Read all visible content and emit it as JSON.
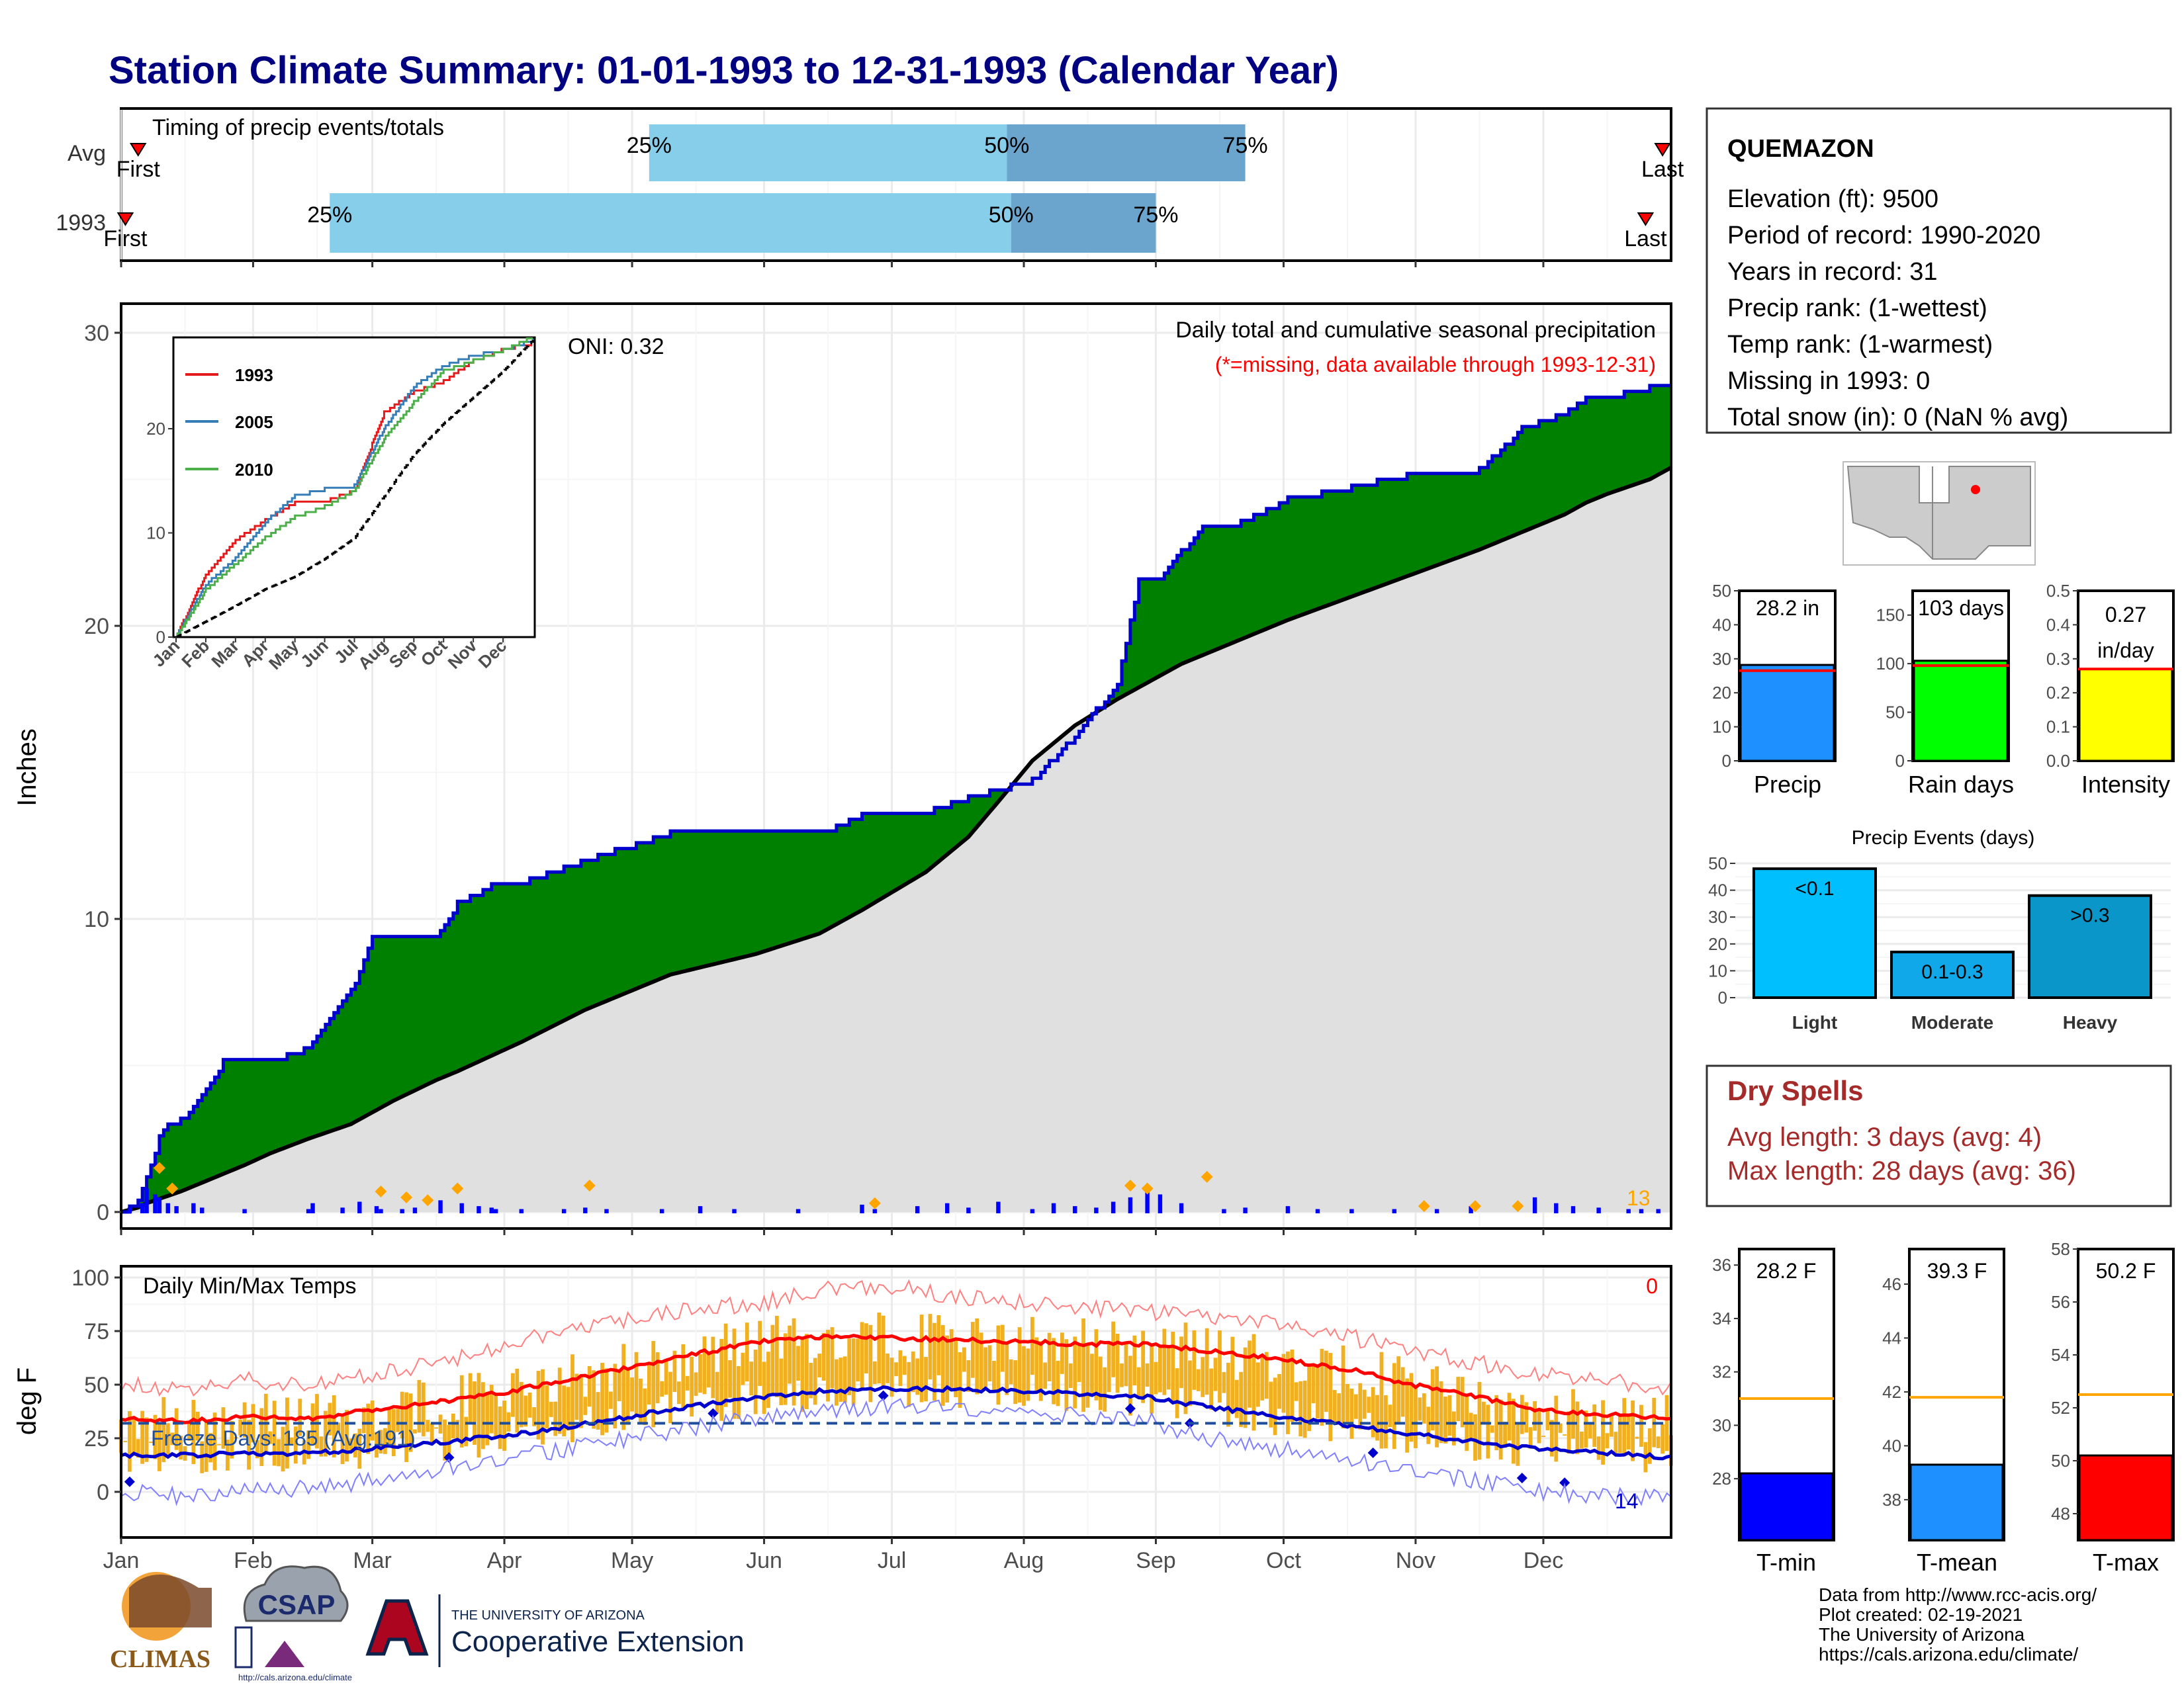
{
  "title": "Station Climate Summary: 01-01-1993 to 12-31-1993 (Calendar Year)",
  "colors": {
    "title": "#000080",
    "cum_obs": "#008000",
    "cum_obs_line": "#0000cd",
    "cum_avg": "#e0e0e0",
    "daily_bar": "#0000ff",
    "marker": "#ffa500",
    "quart_light": "#87ceeb",
    "quart_dark": "#6ba5cd",
    "tmax": "#ff0000",
    "tmin": "#0000cd",
    "range_bar": "#f0b020",
    "dry": "#a52a2a"
  },
  "timing": {
    "title": "Timing of precip events/totals",
    "rows": [
      {
        "label": "Avg",
        "first_label": "First",
        "last_label": "Last",
        "first_day": 5,
        "last_day": 363,
        "q25_day": 125,
        "q50_day": 209,
        "q75_day": 265
      },
      {
        "label": "1993",
        "first_label": "First",
        "last_label": "Last",
        "first_day": 2,
        "last_day": 359,
        "q25_day": 50,
        "q50_day": 210,
        "q75_day": 244
      }
    ],
    "q_labels": [
      "25%",
      "50%",
      "75%"
    ]
  },
  "station": {
    "name": "QUEMAZON",
    "lines": [
      "Elevation (ft): 9500",
      "Period of record: 1990-2020",
      "Years in record: 31",
      "Precip rank:  (1-wettest)",
      "Temp rank:  (1-warmest)",
      "Missing in 1993: 0",
      "Total snow (in): 0 (NaN % avg)"
    ]
  },
  "precip_panel": {
    "ylabel": "Inches",
    "subtitle": "Daily total and cumulative seasonal precipitation",
    "missing_note": "(*=missing, data available through 1993-12-31)",
    "oni": "ONI: 0.32",
    "missing_count": "13",
    "yticks": [
      "0",
      "10",
      "20",
      "30"
    ]
  },
  "months": [
    "Jan",
    "Feb",
    "Mar",
    "Apr",
    "May",
    "Jun",
    "Jul",
    "Aug",
    "Sep",
    "Oct",
    "Nov",
    "Dec"
  ],
  "inset": {
    "legend": [
      "1993",
      "2005",
      "2010"
    ],
    "colors": [
      "#e41a1c",
      "#377eb8",
      "#4daf4a"
    ],
    "yticks": [
      "0",
      "10",
      "20"
    ]
  },
  "temp_panel": {
    "ylabel": "deg F",
    "title": "Daily Min/Max Temps",
    "missing_count": "0",
    "freeze": "Freeze Days: 185 (Avg:191)",
    "bottom_count": "14",
    "yticks": [
      "0",
      "25",
      "50",
      "75",
      "100"
    ]
  },
  "summary_bars": [
    {
      "label": "Precip",
      "value_text": "28.2 in",
      "value_line2": "",
      "color": "#1e90ff",
      "yticks": [
        "0",
        "10",
        "20",
        "30",
        "40",
        "50"
      ]
    },
    {
      "label": "Rain days",
      "value_text": "103 days",
      "value_line2": "",
      "color": "#00ff00",
      "yticks": [
        "0",
        "50",
        "100",
        "150"
      ]
    },
    {
      "label": "Intensity",
      "value_text": "0.27",
      "value_line2": "in/day",
      "color": "#ffff00",
      "yticks": [
        "0.0",
        "0.1",
        "0.2",
        "0.3",
        "0.4",
        "0.5"
      ]
    }
  ],
  "events": {
    "title": "Precip Events (days)",
    "yticks": [
      "0",
      "10",
      "20",
      "30",
      "40",
      "50"
    ],
    "bars": [
      {
        "label": "Light",
        "inner": "<0.1",
        "color": "#00bfff"
      },
      {
        "label": "Moderate",
        "inner": "0.1-0.3",
        "color": "#10a8e8"
      },
      {
        "label": "Heavy",
        "inner": ">0.3",
        "color": "#0a96c8"
      }
    ]
  },
  "dry": {
    "title": "Dry Spells",
    "avg": "Avg length: 3 days (avg: 4)",
    "max": "Max length: 28 days (avg: 36)"
  },
  "temp_bars": [
    {
      "label": "T-min",
      "value_text": "28.2 F",
      "color": "#0000ff",
      "yticks": [
        "28",
        "30",
        "32",
        "34",
        "36"
      ]
    },
    {
      "label": "T-mean",
      "value_text": "39.3 F",
      "color": "#1e90ff",
      "yticks": [
        "38",
        "40",
        "42",
        "44",
        "46"
      ]
    },
    {
      "label": "T-max",
      "value_text": "50.2 F",
      "color": "#ff0000",
      "yticks": [
        "48",
        "50",
        "52",
        "54",
        "56",
        "58"
      ]
    }
  ],
  "footer": [
    "Data from http://www.rcc-acis.org/",
    "Plot created: 02-19-2021",
    "The University of Arizona",
    "https://cals.arizona.edu/climate/"
  ],
  "logos": {
    "climas": "CLIMAS",
    "csap": "CSAP",
    "csap_url": "http://cals.arizona.edu/climate",
    "ua_top": "THE UNIVERSITY OF ARIZONA",
    "ua_main": "Cooperative Extension"
  },
  "chart_data": [
    {
      "type": "area",
      "title": "Daily total and cumulative seasonal precipitation",
      "ylabel": "Inches",
      "ylim": [
        0,
        30
      ],
      "x_days": [
        1,
        5,
        7,
        10,
        12,
        15,
        20,
        25,
        30,
        36,
        45,
        55,
        60,
        65,
        75,
        80,
        89,
        95,
        110,
        130,
        150,
        165,
        175,
        190,
        200,
        207,
        215,
        225,
        235,
        240,
        245,
        250,
        255,
        260,
        265,
        275,
        290,
        305,
        320,
        330,
        340,
        345,
        350,
        360,
        365
      ],
      "cumulative_1993": [
        0,
        0.3,
        1.2,
        2.5,
        3.0,
        3.1,
        4.0,
        5.1,
        5.1,
        5.1,
        5.6,
        7.5,
        9.3,
        9.4,
        9.4,
        10.5,
        11.2,
        11.2,
        12.0,
        12.9,
        12.9,
        12.9,
        13.5,
        13.6,
        14.1,
        14.4,
        14.7,
        16.2,
        18.0,
        21.5,
        21.5,
        22.5,
        23.3,
        23.3,
        23.6,
        24.3,
        24.7,
        25.2,
        25.3,
        26.7,
        27.2,
        27.7,
        27.8,
        28.1,
        28.2
      ],
      "cumulative_avg": [
        0,
        0.15,
        0.3,
        0.45,
        0.55,
        0.7,
        1.0,
        1.3,
        1.6,
        2.0,
        2.5,
        3.0,
        3.4,
        3.8,
        4.5,
        4.8,
        5.4,
        5.8,
        6.9,
        8.1,
        8.8,
        9.5,
        10.3,
        11.6,
        12.8,
        14.0,
        15.4,
        16.6,
        17.5,
        17.9,
        18.3,
        18.7,
        19.0,
        19.3,
        19.6,
        20.2,
        21.0,
        21.8,
        22.6,
        23.2,
        23.8,
        24.2,
        24.5,
        25.0,
        25.4
      ],
      "daily_precip_days": [
        3,
        6,
        7,
        9,
        10,
        12,
        14,
        18,
        20,
        30,
        45,
        46,
        53,
        57,
        61,
        62,
        67,
        70,
        76,
        81,
        85,
        88,
        89,
        95,
        105,
        110,
        115,
        128,
        137,
        145,
        160,
        175,
        178,
        188,
        195,
        200,
        207,
        215,
        220,
        225,
        230,
        234,
        238,
        242,
        245,
        250,
        260,
        265,
        275,
        282,
        290,
        300,
        310,
        318,
        333,
        338,
        342,
        348,
        355,
        358,
        362
      ],
      "daily_precip_values": [
        0.15,
        0.3,
        0.8,
        0.6,
        0.5,
        0.3,
        0.2,
        0.3,
        0.15,
        0.1,
        0.1,
        0.3,
        0.15,
        0.35,
        0.2,
        0.1,
        0.1,
        0.15,
        0.4,
        0.3,
        0.2,
        0.15,
        0.1,
        0.1,
        0.1,
        0.15,
        0.1,
        0.1,
        0.2,
        0.1,
        0.1,
        0.25,
        0.1,
        0.2,
        0.3,
        0.15,
        0.35,
        0.1,
        0.3,
        0.2,
        0.15,
        0.35,
        0.5,
        0.7,
        0.6,
        0.3,
        0.1,
        0.15,
        0.2,
        0.1,
        0.1,
        0.1,
        0.1,
        0.2,
        0.5,
        0.3,
        0.2,
        0.15,
        0.1,
        0.1,
        0.1
      ],
      "marker_days": [
        10,
        13,
        62,
        68,
        73,
        80,
        111,
        178,
        238,
        242,
        256,
        307,
        319,
        329
      ],
      "marker_values": [
        1.5,
        0.8,
        0.7,
        0.5,
        0.4,
        0.8,
        0.9,
        0.3,
        0.9,
        0.8,
        1.2,
        0.2,
        0.2,
        0.2
      ]
    },
    {
      "type": "line",
      "title": "",
      "legend": [
        "1993",
        "2005",
        "2010"
      ],
      "ylim": [
        0,
        30
      ],
      "x_months": [
        "Jan",
        "Feb",
        "Mar",
        "Apr",
        "May",
        "Jun",
        "Jul",
        "Aug",
        "Sep",
        "Oct",
        "Nov",
        "Dec",
        "end"
      ],
      "series": [
        {
          "name": "1993",
          "values": [
            0,
            6,
            9.3,
            11.2,
            12.9,
            13.0,
            14.0,
            21.5,
            23.5,
            24.5,
            26.5,
            27.6,
            28.2
          ]
        },
        {
          "name": "2005",
          "values": [
            0,
            5,
            7.5,
            11.0,
            13.5,
            14.2,
            14.5,
            20.0,
            24.0,
            26.0,
            27.0,
            27.5,
            28.5
          ]
        },
        {
          "name": "2010",
          "values": [
            0,
            4.5,
            7.0,
            9.5,
            11.5,
            12.5,
            14.0,
            19.0,
            22.5,
            25.5,
            26.5,
            27.5,
            28.8
          ]
        },
        {
          "name": "",
          "values": [
            0,
            1.5,
            3.0,
            4.6,
            5.8,
            7.5,
            9.5,
            13.5,
            17.5,
            20.5,
            23.0,
            25.5,
            28.5
          ]
        }
      ]
    },
    {
      "type": "line",
      "title": "Daily Min/Max Temps",
      "ylabel": "deg F",
      "ylim": [
        -15,
        105
      ],
      "x_days": [
        1,
        15,
        31,
        45,
        59,
        75,
        90,
        105,
        120,
        135,
        151,
        165,
        181,
        195,
        212,
        225,
        243,
        255,
        273,
        290,
        304,
        320,
        334,
        350,
        365
      ],
      "series": [
        {
          "name": "",
          "values": [
            34,
            33,
            35,
            34,
            38,
            42,
            46,
            52,
            58,
            64,
            70,
            72,
            72,
            71,
            70,
            69,
            69,
            66,
            62,
            57,
            50,
            44,
            38,
            36,
            34
          ]
        },
        {
          "name": "",
          "values": [
            17,
            17,
            18,
            18,
            20,
            23,
            26,
            30,
            35,
            40,
            44,
            47,
            48,
            48,
            47,
            46,
            44,
            40,
            35,
            31,
            27,
            23,
            20,
            18,
            16
          ]
        },
        {
          "name": "",
          "values": [
            50,
            48,
            52,
            50,
            55,
            60,
            68,
            75,
            80,
            85,
            88,
            94,
            96,
            92,
            88,
            86,
            84,
            82,
            78,
            72,
            66,
            60,
            55,
            52,
            48
          ]
        },
        {
          "name": "",
          "values": [
            0,
            -2,
            0,
            2,
            5,
            10,
            15,
            20,
            25,
            30,
            35,
            38,
            40,
            40,
            38,
            36,
            33,
            25,
            20,
            15,
            10,
            5,
            0,
            -2,
            -3
          ]
        }
      ],
      "freeze_line": 32
    },
    {
      "type": "bar",
      "categories": [
        "Precip",
        "Rain days",
        "Intensity"
      ],
      "values": [
        28.2,
        103,
        0.27
      ],
      "averages": [
        26.5,
        98,
        0.27
      ],
      "ylims": [
        [
          0,
          50
        ],
        [
          0,
          175
        ],
        [
          0,
          0.5
        ]
      ]
    },
    {
      "type": "bar",
      "title": "Precip Events (days)",
      "categories": [
        "Light",
        "Moderate",
        "Heavy"
      ],
      "values": [
        48,
        17,
        38
      ],
      "ylim": [
        0,
        50
      ]
    },
    {
      "type": "bar",
      "categories": [
        "T-min",
        "T-mean",
        "T-max"
      ],
      "values": [
        28.2,
        39.3,
        50.2
      ],
      "averages": [
        31.0,
        41.8,
        52.5
      ],
      "ylims": [
        [
          25.7,
          36.6
        ],
        [
          36.5,
          47.3
        ],
        [
          47.0,
          58.0
        ]
      ]
    }
  ]
}
